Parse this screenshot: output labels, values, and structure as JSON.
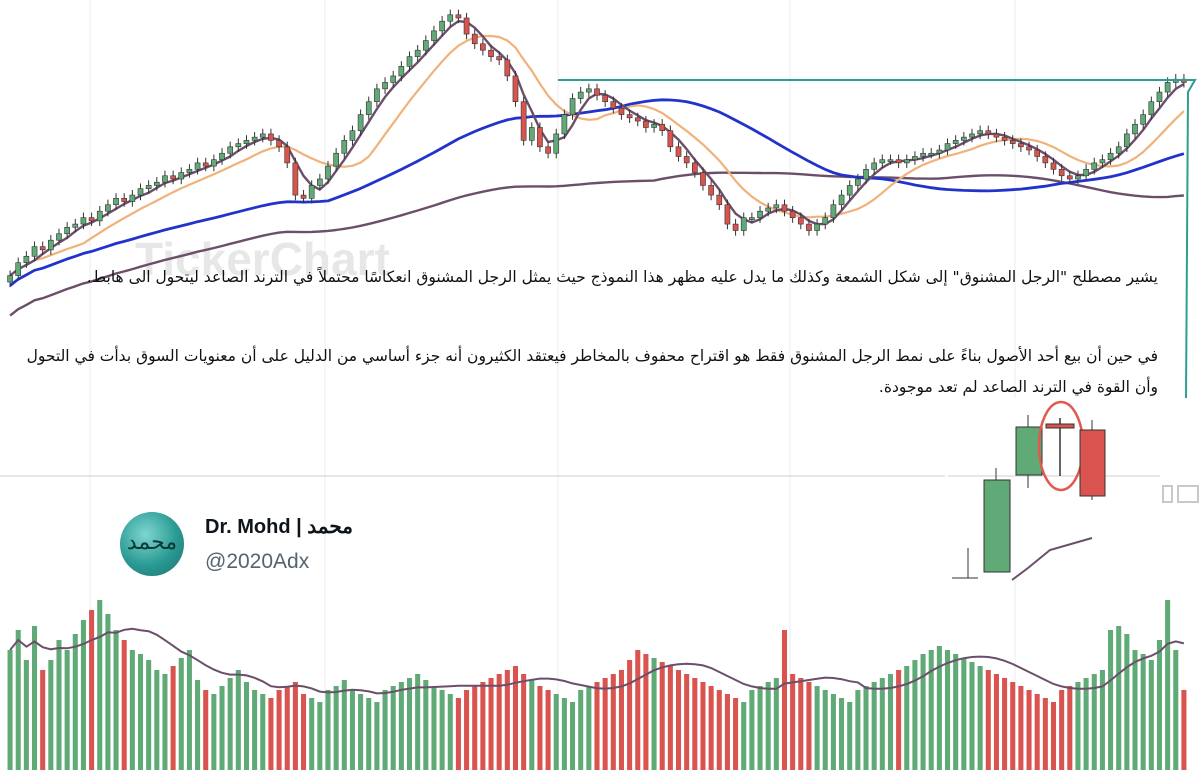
{
  "watermarks": [
    "TickerChart"
  ],
  "paragraph1": "يشير مصطلح \"الرجل المشنوق\" إلى شكل الشمعة وكذلك ما يدل عليه مظهر هذا النموذج حيث يمثل الرجل المشنوق انعكاسًا محتملاً في الترند الصاعد ليتحول الى هابط.",
  "paragraph2": "في حين أن بيع أحد الأصول بناءً على نمط الرجل المشنوق فقط هو اقتراح محفوف بالمخاطر فيعتقد الكثيرون أنه جزء أساسي من الدليل على أن معنويات السوق بدأت في التحول وأن القوة في الترند الصاعد لم تعد موجودة.",
  "user": {
    "name": "Dr. Mohd | محمد",
    "handle": "@2020Adx",
    "avatar_text": "محمد"
  },
  "colors": {
    "bull": "#5faa76",
    "bear": "#d9534f",
    "ma_fast": "#6b4f6a",
    "ma_mid": "#f0b27a",
    "ma_slow_blue": "#2233cc",
    "ma_long": "#6b4f6a",
    "trendline": "#2e9e91",
    "highlight": "#e05a4f"
  },
  "chart_data": [
    {
      "type": "candlestick",
      "title": "",
      "xlabel": "",
      "ylabel": "",
      "legend": "none",
      "grid": true,
      "ylim": [
        0,
        100
      ],
      "close": [
        20,
        24,
        26,
        29,
        28,
        31,
        33,
        35,
        36,
        38,
        37,
        40,
        42,
        44,
        43,
        45,
        47,
        48,
        49,
        51,
        50,
        52,
        53,
        55,
        54,
        56,
        58,
        60,
        61,
        62,
        63,
        64,
        62,
        60,
        55,
        45,
        44,
        48,
        50,
        54,
        58,
        62,
        65,
        70,
        74,
        78,
        80,
        82,
        85,
        88,
        90,
        93,
        96,
        99,
        101,
        100,
        95,
        92,
        90,
        88,
        87,
        82,
        74,
        62,
        66,
        60,
        58,
        64,
        70,
        75,
        77,
        78,
        76,
        74,
        72,
        70,
        69,
        68,
        66,
        67,
        65,
        60,
        57,
        55,
        52,
        48,
        45,
        42,
        36,
        34,
        38,
        38,
        40,
        41,
        42,
        40,
        38,
        36,
        34,
        36,
        38,
        42,
        45,
        48,
        50,
        53,
        55,
        56,
        56,
        55,
        56,
        57,
        58,
        58,
        59,
        61,
        62,
        63,
        64,
        65,
        64,
        63,
        62,
        61,
        60,
        59,
        57,
        55,
        53,
        51,
        50,
        51,
        53,
        55,
        56,
        58,
        60,
        64,
        67,
        70,
        74,
        77,
        80,
        81,
        80
      ]
    },
    {
      "type": "bar",
      "title": "",
      "xlabel": "",
      "ylabel": "",
      "legend": "none",
      "values": [
        60,
        70,
        55,
        72,
        50,
        55,
        65,
        60,
        68,
        75,
        80,
        85,
        78,
        70,
        65,
        60,
        58,
        55,
        50,
        48,
        52,
        56,
        60,
        45,
        40,
        38,
        42,
        46,
        50,
        44,
        40,
        38,
        36,
        40,
        42,
        44,
        38,
        36,
        34,
        40,
        42,
        45,
        40,
        38,
        36,
        34,
        40,
        42,
        44,
        46,
        48,
        45,
        42,
        40,
        38,
        36,
        40,
        42,
        44,
        46,
        48,
        50,
        52,
        48,
        45,
        42,
        40,
        38,
        36,
        34,
        40,
        42,
        44,
        46,
        48,
        50,
        55,
        60,
        58,
        56,
        54,
        52,
        50,
        48,
        46,
        44,
        42,
        40,
        38,
        36,
        34,
        40,
        42,
        44,
        46,
        70,
        48,
        46,
        44,
        42,
        40,
        38,
        36,
        34,
        40,
        42,
        44,
        46,
        48,
        50,
        52,
        55,
        58,
        60,
        62,
        60,
        58,
        56,
        54,
        52,
        50,
        48,
        46,
        44,
        42,
        40,
        38,
        36,
        34,
        40,
        42,
        44,
        46,
        48,
        50,
        70,
        72,
        68,
        60,
        58,
        55,
        65,
        85,
        60,
        40
      ]
    }
  ]
}
